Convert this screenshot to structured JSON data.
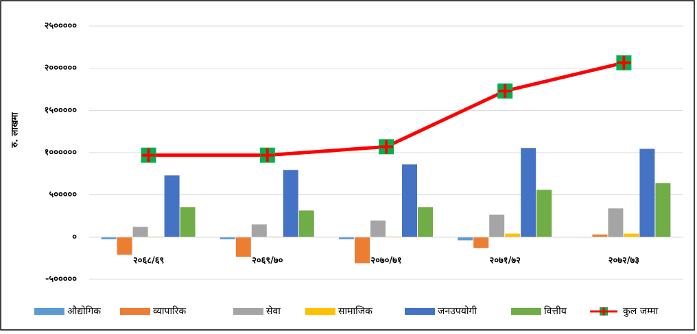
{
  "chart_data": {
    "type": "bar_line",
    "ylabel": "रु. लाखमा",
    "categories": [
      "२०६८/६९",
      "२०६९/७०",
      "२०७०/७१",
      "२०७१/७२",
      "२०७२/७३"
    ],
    "series": [
      {
        "name": "औद्योगिक",
        "color": "#5b9bd5",
        "type": "bar",
        "values": [
          -25000,
          -25000,
          -25000,
          -40000,
          0
        ]
      },
      {
        "name": "व्यापारिक",
        "color": "#ed7d31",
        "type": "bar",
        "values": [
          -210000,
          -235000,
          -310000,
          -130000,
          30000
        ]
      },
      {
        "name": "सेवा",
        "color": "#a5a5a5",
        "type": "bar",
        "values": [
          120000,
          150000,
          195000,
          265000,
          340000
        ]
      },
      {
        "name": "सामाजिक",
        "color": "#ffc000",
        "type": "bar",
        "values": [
          5000,
          5000,
          5000,
          40000,
          40000
        ]
      },
      {
        "name": "जनउपयोगी",
        "color": "#4472c4",
        "type": "bar",
        "values": [
          730000,
          795000,
          860000,
          1055000,
          1045000
        ]
      },
      {
        "name": "वित्तीय",
        "color": "#70ad47",
        "type": "bar",
        "values": [
          355000,
          315000,
          355000,
          560000,
          640000
        ]
      },
      {
        "name": "कुल जम्मा",
        "color": "#ff0000",
        "type": "line",
        "marker_color": "#00b050",
        "values": [
          970000,
          970000,
          1070000,
          1730000,
          2065000
        ]
      }
    ],
    "ylim": [
      -500000,
      2500000
    ],
    "yticks": [
      {
        "value": -500000,
        "label": "-५०००००"
      },
      {
        "value": 0,
        "label": "०"
      },
      {
        "value": 500000,
        "label": "५०००००"
      },
      {
        "value": 1000000,
        "label": "१००००००"
      },
      {
        "value": 1500000,
        "label": "१५०००००"
      },
      {
        "value": 2000000,
        "label": "२००००००"
      },
      {
        "value": 2500000,
        "label": "२५०००००"
      }
    ],
    "grid": true
  }
}
